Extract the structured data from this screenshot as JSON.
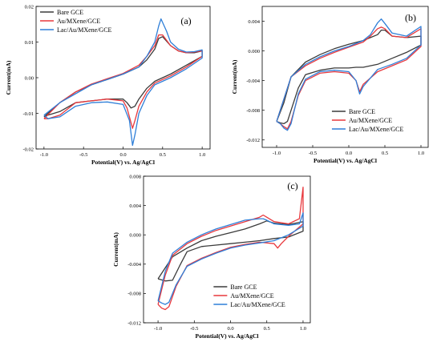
{
  "colors": {
    "bare_gce": "#3b3b3b",
    "au_mxene": "#e8383d",
    "lac_au_mxene": "#2f7fd8"
  },
  "chart_data": [
    {
      "type": "line",
      "label": "(a)",
      "xlabel": "Potential(V) vs. Ag/AgCl",
      "ylabel": "Current(mA)",
      "xlim": [
        -1.1,
        1.1
      ],
      "ylim": [
        -0.02,
        0.02
      ],
      "xticks": [
        "-1.0",
        "-0.5",
        "0.0",
        "0.5",
        "1.0"
      ],
      "yticks": [
        "-0.02",
        "-0.01",
        "0.00",
        "0.01",
        "0.02"
      ],
      "legend": "top-left",
      "series": [
        {
          "name": "Bare GCE",
          "x": [
            -1.0,
            -0.8,
            -0.6,
            -0.4,
            -0.2,
            0.0,
            0.2,
            0.3,
            0.4,
            0.45,
            0.5,
            0.6,
            0.7,
            0.8,
            0.9,
            1.0,
            1.0,
            0.8,
            0.6,
            0.4,
            0.3,
            0.2,
            0.15,
            0.1,
            0.05,
            0.0,
            -0.2,
            -0.4,
            -0.6,
            -0.8,
            -0.95,
            -1.0
          ],
          "y": [
            -0.011,
            -0.007,
            -0.004,
            -0.002,
            -0.0005,
            0.001,
            0.003,
            0.005,
            0.008,
            0.011,
            0.0115,
            0.009,
            0.0075,
            0.007,
            0.007,
            0.0075,
            0.006,
            0.0035,
            0.001,
            -0.001,
            -0.003,
            -0.006,
            -0.008,
            -0.0085,
            -0.007,
            -0.006,
            -0.006,
            -0.0065,
            -0.007,
            -0.0095,
            -0.0105,
            -0.011
          ]
        },
        {
          "name": "Au/MXene/GCE",
          "x": [
            -1.0,
            -0.8,
            -0.6,
            -0.4,
            -0.2,
            0.0,
            0.2,
            0.3,
            0.4,
            0.45,
            0.5,
            0.6,
            0.7,
            0.8,
            0.9,
            1.0,
            1.0,
            0.8,
            0.6,
            0.4,
            0.3,
            0.2,
            0.15,
            0.12,
            0.05,
            0.0,
            -0.2,
            -0.4,
            -0.6,
            -0.8,
            -0.95,
            -1.0
          ],
          "y": [
            -0.0115,
            -0.007,
            -0.004,
            -0.0018,
            -0.0003,
            0.0012,
            0.0035,
            0.006,
            0.009,
            0.012,
            0.012,
            0.009,
            0.0075,
            0.007,
            0.0072,
            0.0075,
            0.006,
            0.003,
            0.0005,
            -0.0015,
            -0.004,
            -0.008,
            -0.012,
            -0.0142,
            -0.0085,
            -0.0065,
            -0.006,
            -0.0065,
            -0.007,
            -0.0105,
            -0.0115,
            -0.0115
          ]
        },
        {
          "name": "Lac/Au/MXene/GCE",
          "x": [
            -1.0,
            -0.8,
            -0.6,
            -0.4,
            -0.2,
            0.0,
            0.2,
            0.3,
            0.4,
            0.45,
            0.48,
            0.55,
            0.6,
            0.7,
            0.8,
            0.9,
            1.0,
            1.0,
            0.8,
            0.6,
            0.4,
            0.3,
            0.2,
            0.15,
            0.12,
            0.08,
            0.0,
            -0.2,
            -0.4,
            -0.6,
            -0.8,
            -0.95,
            -1.0
          ],
          "y": [
            -0.0105,
            -0.007,
            -0.0045,
            -0.002,
            -0.0005,
            0.001,
            0.003,
            0.006,
            0.01,
            0.0145,
            0.0165,
            0.013,
            0.01,
            0.008,
            0.0072,
            0.0073,
            0.0078,
            0.0055,
            0.0025,
            0.0,
            -0.002,
            -0.005,
            -0.01,
            -0.016,
            -0.019,
            -0.012,
            -0.0075,
            -0.0068,
            -0.007,
            -0.008,
            -0.011,
            -0.0115,
            -0.0105
          ]
        }
      ]
    },
    {
      "type": "line",
      "label": "(b)",
      "xlabel": "Potential(V) vs. Ag/AgCl",
      "ylabel": "Current(mA)",
      "xlim": [
        -1.2,
        1.1
      ],
      "ylim": [
        -0.013,
        0.006
      ],
      "xticks": [
        "-1.0",
        "-0.5",
        "0.0",
        "0.5",
        "1.0"
      ],
      "yticks": [
        "-0.012",
        "-0.008",
        "-0.004",
        "0.000",
        "0.004"
      ],
      "legend": "bottom-right",
      "series": [
        {
          "name": "Bare GCE",
          "x": [
            -1.0,
            -0.9,
            -0.8,
            -0.6,
            -0.4,
            -0.2,
            0.0,
            0.2,
            0.3,
            0.4,
            0.45,
            0.5,
            0.6,
            0.8,
            1.0,
            1.0,
            0.8,
            0.6,
            0.4,
            0.2,
            0.1,
            0.0,
            -0.2,
            -0.4,
            -0.6,
            -0.7,
            -0.8,
            -0.85,
            -0.9,
            -0.95,
            -1.0
          ],
          "y": [
            -0.0095,
            -0.007,
            -0.0035,
            -0.0015,
            -0.0005,
            0.0003,
            0.0009,
            0.0014,
            0.0018,
            0.0022,
            0.0028,
            0.0028,
            0.002,
            0.0018,
            0.002,
            0.0008,
            -0.0002,
            -0.001,
            -0.0018,
            -0.0022,
            -0.0022,
            -0.0023,
            -0.0023,
            -0.0026,
            -0.0032,
            -0.005,
            -0.008,
            -0.0095,
            -0.0098,
            -0.0097,
            -0.0095
          ]
        },
        {
          "name": "Au/MXene/GCE",
          "x": [
            -1.0,
            -0.9,
            -0.8,
            -0.6,
            -0.4,
            -0.2,
            0.0,
            0.2,
            0.3,
            0.4,
            0.45,
            0.5,
            0.6,
            0.8,
            1.0,
            1.0,
            0.8,
            0.6,
            0.4,
            0.2,
            0.15,
            0.1,
            0.0,
            -0.2,
            -0.4,
            -0.6,
            -0.7,
            -0.8,
            -0.85,
            -0.9,
            -0.95,
            -1.0
          ],
          "y": [
            -0.0095,
            -0.0065,
            -0.0035,
            -0.002,
            -0.001,
            -0.0002,
            0.0005,
            0.0012,
            0.002,
            0.003,
            0.0032,
            0.003,
            0.002,
            0.0018,
            0.003,
            0.0006,
            -0.0012,
            -0.002,
            -0.0028,
            -0.0045,
            -0.0055,
            -0.004,
            -0.003,
            -0.0028,
            -0.003,
            -0.004,
            -0.006,
            -0.0095,
            -0.0105,
            -0.0102,
            -0.0098,
            -0.0095
          ]
        },
        {
          "name": "Lac/Au/MXene/GCE",
          "x": [
            -1.0,
            -0.9,
            -0.8,
            -0.6,
            -0.4,
            -0.2,
            0.0,
            0.2,
            0.3,
            0.4,
            0.45,
            0.5,
            0.6,
            0.8,
            1.0,
            1.0,
            0.8,
            0.6,
            0.4,
            0.2,
            0.15,
            0.1,
            0.0,
            -0.2,
            -0.4,
            -0.6,
            -0.7,
            -0.8,
            -0.85,
            -0.9,
            -0.95,
            -1.0
          ],
          "y": [
            -0.0095,
            -0.0065,
            -0.0035,
            -0.0018,
            -0.0008,
            0.0,
            0.0006,
            0.0014,
            0.0022,
            0.0038,
            0.0043,
            0.0037,
            0.0024,
            0.002,
            0.0033,
            0.0008,
            -0.001,
            -0.0018,
            -0.0025,
            -0.0048,
            -0.0058,
            -0.004,
            -0.0028,
            -0.0026,
            -0.0028,
            -0.0038,
            -0.0058,
            -0.0098,
            -0.0107,
            -0.0104,
            -0.0098,
            -0.0095
          ]
        }
      ]
    },
    {
      "type": "line",
      "label": "(c)",
      "xlabel": "Potential(V) vs. Ag/AgCl",
      "ylabel": "Current(mA)",
      "xlim": [
        -1.2,
        1.1
      ],
      "ylim": [
        -0.012,
        0.008
      ],
      "xticks": [
        "-1.0",
        "-0.5",
        "0.0",
        "0.5",
        "1.0"
      ],
      "yticks": [
        "-0.012",
        "-0.008",
        "-0.004",
        "0.000",
        "0.004",
        "0.008"
      ],
      "legend": "bottom-right",
      "series": [
        {
          "name": "Bare GCE",
          "x": [
            -1.0,
            -0.9,
            -0.8,
            -0.6,
            -0.4,
            -0.2,
            0.0,
            0.2,
            0.4,
            0.5,
            0.6,
            0.8,
            1.0,
            1.0,
            0.8,
            0.6,
            0.4,
            0.2,
            0.0,
            -0.2,
            -0.4,
            -0.6,
            -0.7,
            -0.8,
            -0.9,
            -1.0
          ],
          "y": [
            -0.006,
            -0.0045,
            -0.003,
            -0.0018,
            -0.0008,
            -0.0002,
            0.0003,
            0.0008,
            0.0015,
            0.0019,
            0.0016,
            0.0014,
            0.0018,
            0.0005,
            -0.0003,
            -0.0005,
            -0.0008,
            -0.001,
            -0.0012,
            -0.0014,
            -0.0016,
            -0.0023,
            -0.0042,
            -0.0062,
            -0.0063,
            -0.006
          ]
        },
        {
          "name": "Au/MXene/GCE",
          "x": [
            -1.0,
            -0.9,
            -0.8,
            -0.6,
            -0.4,
            -0.2,
            0.0,
            0.2,
            0.4,
            0.45,
            0.5,
            0.6,
            0.8,
            0.95,
            1.0,
            1.0,
            0.8,
            0.7,
            0.65,
            0.6,
            0.4,
            0.2,
            0.0,
            -0.2,
            -0.4,
            -0.6,
            -0.75,
            -0.85,
            -0.9,
            -0.95,
            -1.0
          ],
          "y": [
            -0.0095,
            -0.0055,
            -0.0028,
            -0.0012,
            -0.0002,
            0.0006,
            0.0012,
            0.0018,
            0.0024,
            0.0027,
            0.0024,
            0.0018,
            0.0015,
            0.0022,
            0.0065,
            0.0015,
            -0.0002,
            -0.0012,
            -0.0018,
            -0.0012,
            -0.001,
            -0.0013,
            -0.0017,
            -0.0024,
            -0.0032,
            -0.0042,
            -0.007,
            -0.0098,
            -0.0102,
            -0.01,
            -0.0095
          ]
        },
        {
          "name": "Lac/Au/MXene/GCE",
          "x": [
            -1.0,
            -0.9,
            -0.8,
            -0.6,
            -0.4,
            -0.2,
            0.0,
            0.2,
            0.4,
            0.45,
            0.5,
            0.6,
            0.8,
            0.95,
            1.0,
            1.0,
            0.8,
            0.6,
            0.4,
            0.2,
            0.0,
            -0.2,
            -0.4,
            -0.6,
            -0.75,
            -0.85,
            -0.9,
            -0.95,
            -1.0
          ],
          "y": [
            -0.009,
            -0.005,
            -0.0025,
            -0.001,
            0.0,
            0.0008,
            0.0014,
            0.002,
            0.0022,
            0.0022,
            0.002,
            0.0015,
            0.0013,
            0.0015,
            0.003,
            0.0012,
            0.0,
            -0.0008,
            -0.0011,
            -0.0014,
            -0.0018,
            -0.0025,
            -0.0033,
            -0.0043,
            -0.0068,
            -0.0092,
            -0.0095,
            -0.0093,
            -0.009
          ]
        }
      ]
    }
  ]
}
